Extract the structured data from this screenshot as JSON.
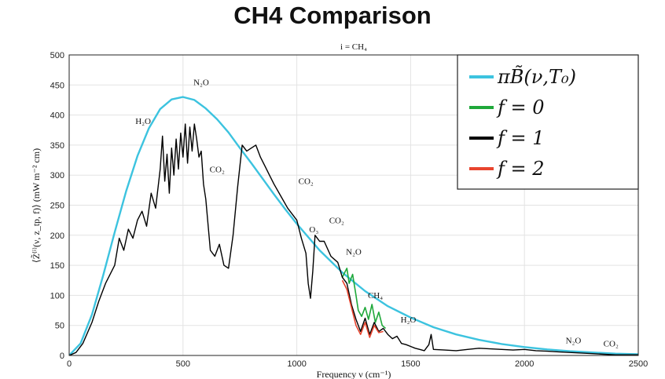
{
  "page_title": "CH4 Comparison",
  "chart_data": {
    "type": "line",
    "subtitle": "i =  CH₄",
    "xlabel": "Frequency ν (cm⁻¹)",
    "ylabel": "⟨Z̃⁽ⁱ⁾(ν, z_tp, f)⟩ (mW m⁻² cm)",
    "xlim": [
      0,
      2500
    ],
    "ylim": [
      0,
      500
    ],
    "xticks": [
      0,
      500,
      1000,
      1500,
      2000,
      2500
    ],
    "yticks": [
      0,
      50,
      100,
      150,
      200,
      250,
      300,
      350,
      400,
      450,
      500
    ],
    "grid": true,
    "legend_position": "top-right",
    "series": [
      {
        "name": "πB̃(ν,T₀)",
        "color": "#3cc3df",
        "x": [
          0,
          50,
          100,
          150,
          200,
          250,
          300,
          350,
          400,
          450,
          500,
          550,
          600,
          650,
          700,
          750,
          800,
          850,
          900,
          950,
          1000,
          1100,
          1200,
          1300,
          1400,
          1500,
          1600,
          1700,
          1800,
          1900,
          2000,
          2100,
          2200,
          2300,
          2400,
          2500
        ],
        "y": [
          0,
          20,
          68,
          134,
          205,
          273,
          332,
          378,
          410,
          426,
          430,
          425,
          411,
          393,
          371,
          345,
          320,
          294,
          268,
          243,
          219,
          175,
          138,
          107,
          82,
          63,
          47,
          35,
          26,
          19,
          14,
          10,
          7,
          5,
          3,
          2
        ]
      },
      {
        "name": "f = 0",
        "color": "#1fa83a",
        "x": [
          1200,
          1220,
          1230,
          1245,
          1260,
          1270,
          1285,
          1300,
          1315,
          1330,
          1345,
          1360,
          1375,
          1390
        ],
        "y": [
          130,
          145,
          120,
          135,
          100,
          75,
          65,
          80,
          60,
          85,
          55,
          72,
          50,
          45
        ]
      },
      {
        "name": "f = 1",
        "color": "#000000",
        "x": [
          0,
          30,
          60,
          100,
          130,
          160,
          200,
          220,
          240,
          260,
          280,
          300,
          320,
          340,
          360,
          380,
          400,
          410,
          420,
          430,
          440,
          450,
          460,
          470,
          480,
          490,
          500,
          510,
          520,
          530,
          540,
          550,
          560,
          570,
          580,
          590,
          600,
          620,
          640,
          660,
          680,
          700,
          720,
          740,
          760,
          780,
          800,
          820,
          840,
          860,
          880,
          900,
          930,
          960,
          1000,
          1020,
          1040,
          1050,
          1060,
          1070,
          1080,
          1100,
          1120,
          1150,
          1180,
          1200,
          1220,
          1240,
          1260,
          1280,
          1300,
          1320,
          1340,
          1360,
          1380,
          1400,
          1420,
          1440,
          1460,
          1480,
          1500,
          1520,
          1540,
          1560,
          1580,
          1590,
          1600,
          1650,
          1700,
          1750,
          1800,
          1850,
          1900,
          1950,
          2000,
          2050,
          2100,
          2150,
          2200,
          2250,
          2300,
          2350,
          2400,
          2450,
          2500
        ],
        "y": [
          0,
          5,
          20,
          55,
          90,
          120,
          150,
          195,
          175,
          210,
          195,
          225,
          240,
          215,
          270,
          245,
          310,
          365,
          290,
          335,
          270,
          345,
          300,
          360,
          310,
          370,
          330,
          385,
          320,
          380,
          340,
          385,
          360,
          330,
          340,
          285,
          260,
          175,
          165,
          185,
          150,
          145,
          200,
          280,
          350,
          340,
          345,
          350,
          330,
          315,
          300,
          285,
          265,
          245,
          225,
          195,
          170,
          120,
          95,
          140,
          200,
          190,
          190,
          165,
          155,
          130,
          120,
          85,
          60,
          40,
          62,
          35,
          55,
          40,
          45,
          35,
          28,
          32,
          20,
          18,
          15,
          12,
          10,
          8,
          18,
          35,
          10,
          9,
          8,
          10,
          12,
          11,
          10,
          9,
          10,
          8,
          7,
          6,
          5,
          4,
          3,
          2,
          1,
          1,
          1
        ]
      },
      {
        "name": "f = 2",
        "color": "#e8442e",
        "x": [
          1200,
          1220,
          1240,
          1260,
          1280,
          1300,
          1320,
          1340,
          1360,
          1380
        ],
        "y": [
          125,
          110,
          80,
          50,
          35,
          55,
          30,
          50,
          38,
          40
        ]
      }
    ],
    "annotations": [
      {
        "text": "N₂O",
        "x": 580,
        "y": 450
      },
      {
        "text": "H₂O",
        "x": 325,
        "y": 385
      },
      {
        "text": "CO₂",
        "x": 650,
        "y": 305
      },
      {
        "text": "CO₂",
        "x": 1040,
        "y": 285
      },
      {
        "text": "CO₂",
        "x": 1175,
        "y": 220
      },
      {
        "text": "O₃",
        "x": 1075,
        "y": 205
      },
      {
        "text": "N₂O",
        "x": 1250,
        "y": 168
      },
      {
        "text": "CH₄",
        "x": 1345,
        "y": 95
      },
      {
        "text": "H₂O",
        "x": 1490,
        "y": 55
      },
      {
        "text": "N₂O",
        "x": 2215,
        "y": 20
      },
      {
        "text": "CO₂",
        "x": 2380,
        "y": 15
      }
    ]
  }
}
